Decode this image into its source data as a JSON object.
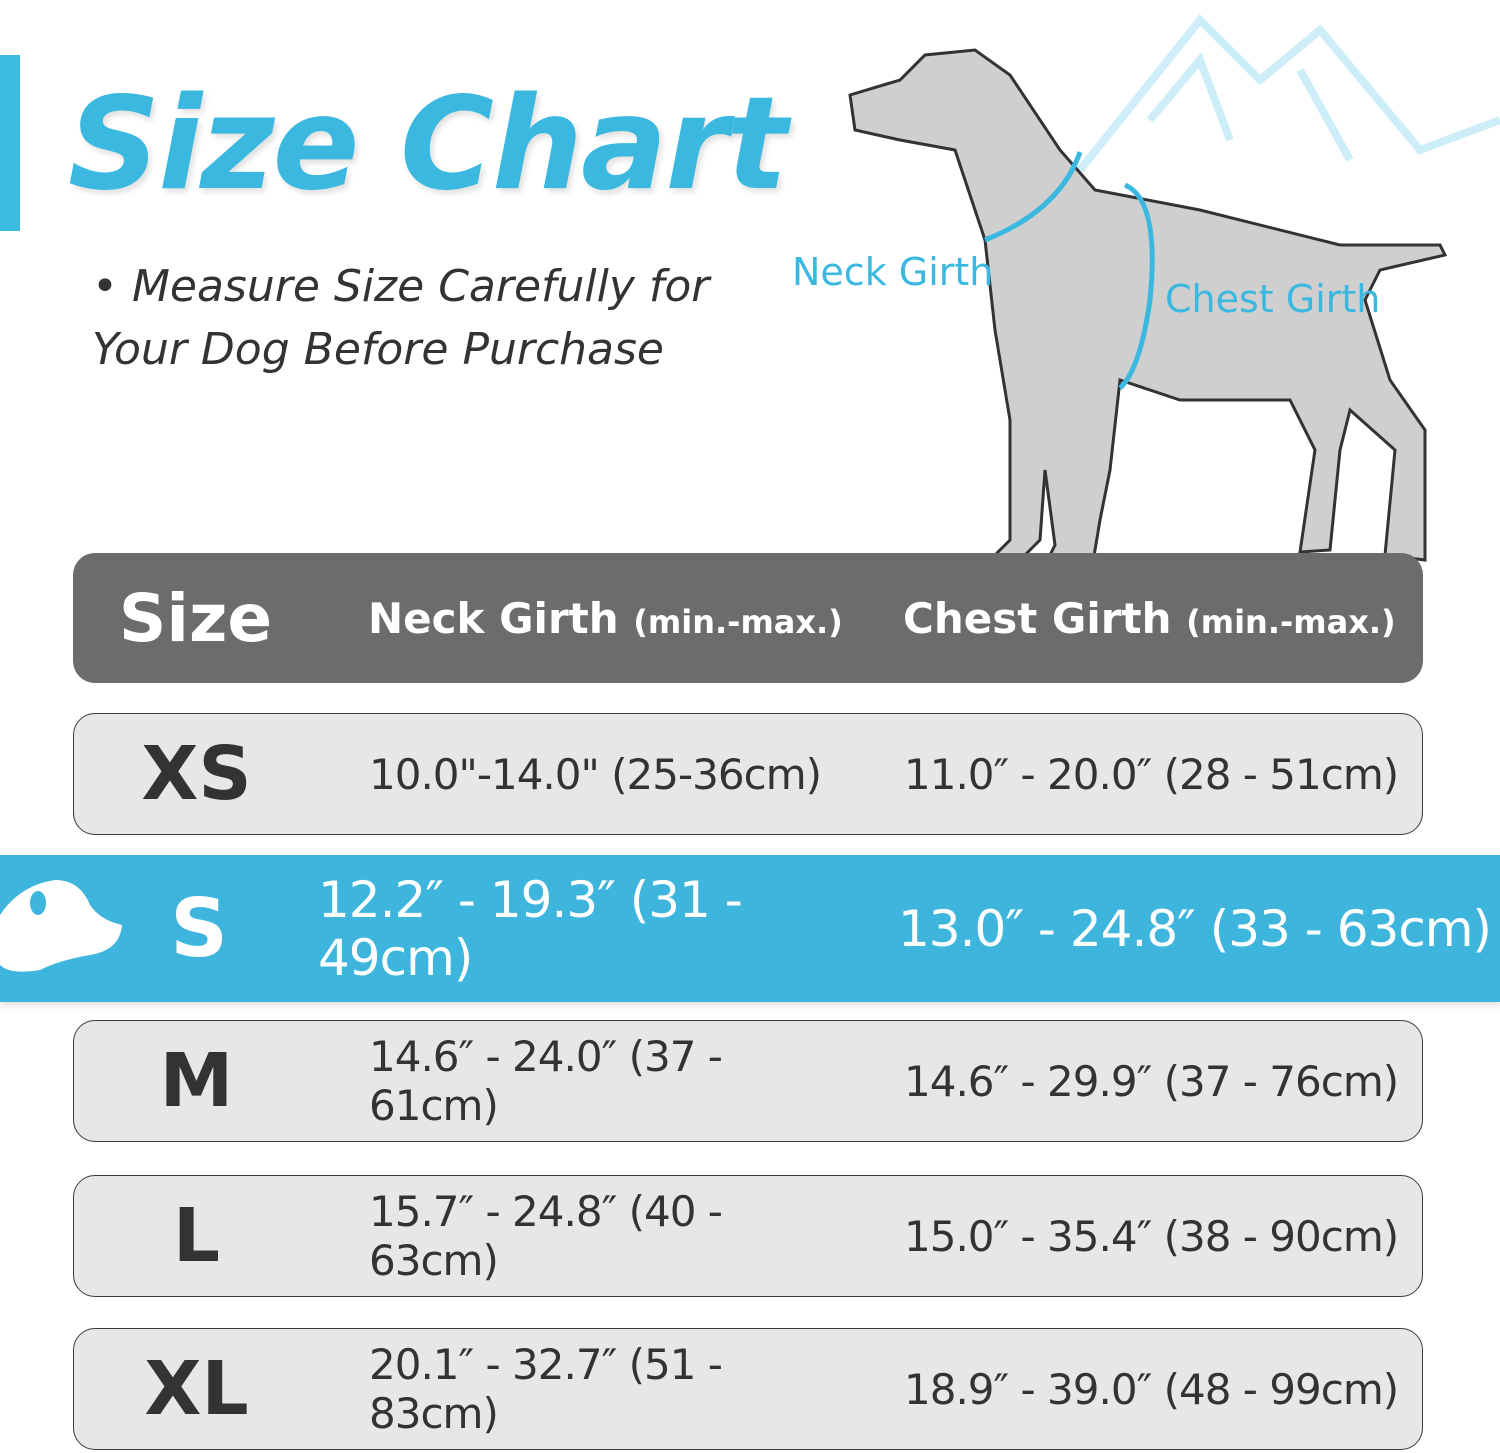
{
  "title": "Size Chart",
  "note": "• Measure Size Carefully for Your Dog Before Purchase",
  "diagram": {
    "neck_label": "Neck Girth",
    "chest_label": "Chest Girth"
  },
  "table": {
    "headers": {
      "size": "Size",
      "neck": "Neck Girth",
      "neck_unit": "(min.-max.)",
      "chest": "Chest Girth",
      "chest_unit": "(min.-max.)"
    },
    "rows": [
      {
        "size": "XS",
        "neck": "10.0\"-14.0\" (25-36cm)",
        "chest": "11.0″ - 20.0″ (28 - 51cm)"
      },
      {
        "size": "S",
        "neck": "12.2″ - 19.3″ (31 - 49cm)",
        "chest": "13.0″ - 24.8″ (33 - 63cm)",
        "highlighted": true
      },
      {
        "size": "M",
        "neck": "14.6″ - 24.0″ (37 - 61cm)",
        "chest": "14.6″ - 29.9″ (37 - 76cm)"
      },
      {
        "size": "L",
        "neck": "15.7″ - 24.8″ (40 - 63cm)",
        "chest": "15.0″ - 35.4″ (38 - 90cm)"
      },
      {
        "size": "XL",
        "neck": "20.1″ - 32.7″ (51 - 83cm)",
        "chest": "18.9″ - 39.0″ (48 - 99cm)"
      }
    ]
  },
  "colors": {
    "accent": "#3bbde0",
    "header": "#6c6c6c",
    "row": "#e7e7e7",
    "highlight": "#3db5dc"
  }
}
